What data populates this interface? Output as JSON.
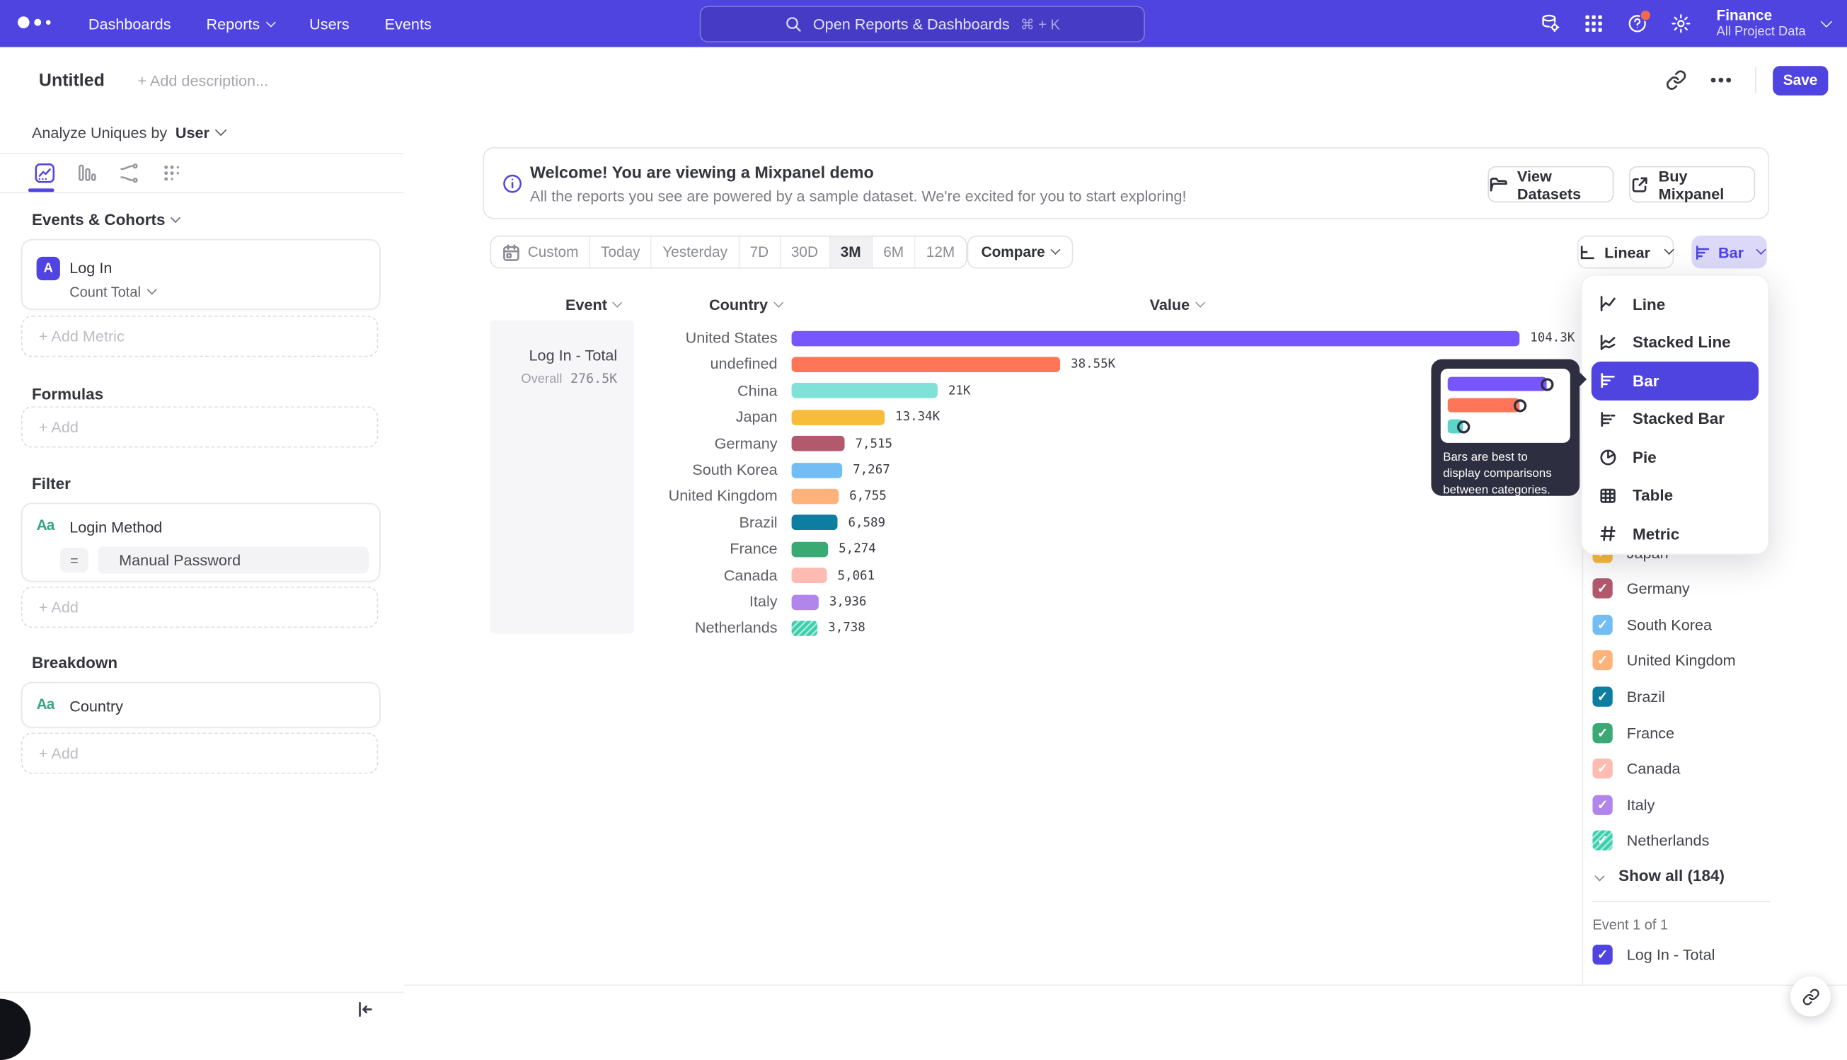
{
  "colors": {
    "brand": "#4f44e0",
    "nav_bg": "#4f44e0",
    "selected_date_bg": "#f1f1f3",
    "chart_type_active_bg": "#dcd9f8"
  },
  "nav": {
    "items": [
      {
        "label": "Dashboards",
        "has_chevron": false
      },
      {
        "label": "Reports",
        "has_chevron": true
      },
      {
        "label": "Users",
        "has_chevron": false
      },
      {
        "label": "Events",
        "has_chevron": false
      }
    ],
    "search": {
      "placeholder": "Open Reports & Dashboards",
      "shortcut": "⌘ + K"
    },
    "icons": [
      "data-gear-icon",
      "apps-grid-icon",
      "help-icon",
      "gear-icon"
    ],
    "project": {
      "name": "Finance",
      "scope": "All Project Data"
    }
  },
  "titlebar": {
    "title": "Untitled",
    "description_placeholder": "+ Add description...",
    "save_label": "Save"
  },
  "sidebar": {
    "analyze_by_label": "Analyze Uniques by",
    "analyze_by_value": "User",
    "events_section_label": "Events & Cohorts",
    "event_card": {
      "badge": "A",
      "name": "Log In",
      "aggregation": "Count Total"
    },
    "add_metric_label": "+ Add Metric",
    "formulas_label": "Formulas",
    "formulas_add_label": "+ Add",
    "filter_label": "Filter",
    "filter_card": {
      "icon_label": "Aa",
      "name": "Login Method",
      "operator": "=",
      "value": "Manual Password"
    },
    "filter_add_label": "+ Add",
    "breakdown_label": "Breakdown",
    "breakdown_card": {
      "icon_label": "Aa",
      "name": "Country"
    },
    "breakdown_add_label": "+ Add"
  },
  "banner": {
    "title": "Welcome! You are viewing a Mixpanel demo",
    "subtitle": "All the reports you see are powered by a sample dataset. We're excited for you to start exploring!",
    "buttons": [
      {
        "label": "View Datasets",
        "icon": "folder-icon"
      },
      {
        "label": "Buy Mixpanel",
        "icon": "external-link-icon"
      }
    ]
  },
  "toolbar": {
    "date_ranges": [
      {
        "label": "Custom",
        "icon": "calendar-icon",
        "selected": false
      },
      {
        "label": "Today",
        "selected": false
      },
      {
        "label": "Yesterday",
        "selected": false
      },
      {
        "label": "7D",
        "selected": false
      },
      {
        "label": "30D",
        "selected": false
      },
      {
        "label": "3M",
        "selected": true
      },
      {
        "label": "6M",
        "selected": false
      },
      {
        "label": "12M",
        "selected": false
      }
    ],
    "compare_label": "Compare",
    "scale_label": "Linear",
    "chart_type_label": "Bar"
  },
  "chart_data": {
    "type": "bar",
    "orientation": "horizontal",
    "headers": {
      "event": "Event",
      "category": "Country",
      "value": "Value"
    },
    "series_name": "Log In - Total",
    "overall_label": "Overall",
    "overall_value": "276.5K",
    "max_value": 104300,
    "categories": [
      "United States",
      "undefined",
      "China",
      "Japan",
      "Germany",
      "South Korea",
      "United Kingdom",
      "Brazil",
      "France",
      "Canada",
      "Italy",
      "Netherlands"
    ],
    "values": [
      104300,
      38550,
      21000,
      13340,
      7515,
      7267,
      6755,
      6589,
      5274,
      5061,
      3936,
      3738
    ],
    "value_labels": [
      "104.3K",
      "38.55K",
      "21K",
      "13.34K",
      "7,515",
      "7,267",
      "6,755",
      "6,589",
      "5,274",
      "5,061",
      "3,936",
      "3,738"
    ],
    "colors": [
      "#7856ff",
      "#ff7557",
      "#80e1d9",
      "#f8bc3b",
      "#b2596e",
      "#72bef4",
      "#ffb27a",
      "#0d7ea0",
      "#3ba974",
      "#febbb2",
      "#b185eb",
      "#3bceac"
    ],
    "hatched_indices": [
      11
    ],
    "grid": false,
    "legend_position": "right"
  },
  "chart_type_menu": {
    "items": [
      {
        "label": "Line",
        "icon": "line-chart-icon",
        "selected": false
      },
      {
        "label": "Stacked Line",
        "icon": "stacked-line-icon",
        "selected": false
      },
      {
        "label": "Bar",
        "icon": "bar-chart-icon",
        "selected": true
      },
      {
        "label": "Stacked Bar",
        "icon": "stacked-bar-icon",
        "selected": false
      },
      {
        "label": "Pie",
        "icon": "pie-chart-icon",
        "selected": false
      },
      {
        "label": "Table",
        "icon": "table-icon",
        "selected": false
      },
      {
        "label": "Metric",
        "icon": "metric-icon",
        "selected": false
      }
    ],
    "tooltip": {
      "text": "Bars are best to display comparisons between categories.",
      "mini_bars": [
        {
          "color": "#7856ff",
          "width": 0.76
        },
        {
          "color": "#ff7557",
          "width": 0.55
        },
        {
          "color": "#5ad5c8",
          "width": 0.12
        }
      ]
    }
  },
  "legend": {
    "items": [
      {
        "label": "Japan",
        "color": "#f8bc3b",
        "checked": true,
        "hatched": false
      },
      {
        "label": "Germany",
        "color": "#b2596e",
        "checked": true,
        "hatched": false
      },
      {
        "label": "South Korea",
        "color": "#72bef4",
        "checked": true,
        "hatched": false
      },
      {
        "label": "United Kingdom",
        "color": "#ffb27a",
        "checked": true,
        "hatched": false
      },
      {
        "label": "Brazil",
        "color": "#0d7ea0",
        "checked": true,
        "hatched": false
      },
      {
        "label": "France",
        "color": "#3ba974",
        "checked": true,
        "hatched": false
      },
      {
        "label": "Canada",
        "color": "#febbb2",
        "checked": true,
        "hatched": false
      },
      {
        "label": "Italy",
        "color": "#b185eb",
        "checked": true,
        "hatched": false
      },
      {
        "label": "Netherlands",
        "color": "#3bceac",
        "checked": true,
        "hatched": true
      }
    ],
    "show_all_label": "Show all (184)",
    "event_count_label": "Event 1 of 1",
    "event_series": {
      "label": "Log In - Total",
      "color": "#4f44e0",
      "checked": true
    }
  }
}
